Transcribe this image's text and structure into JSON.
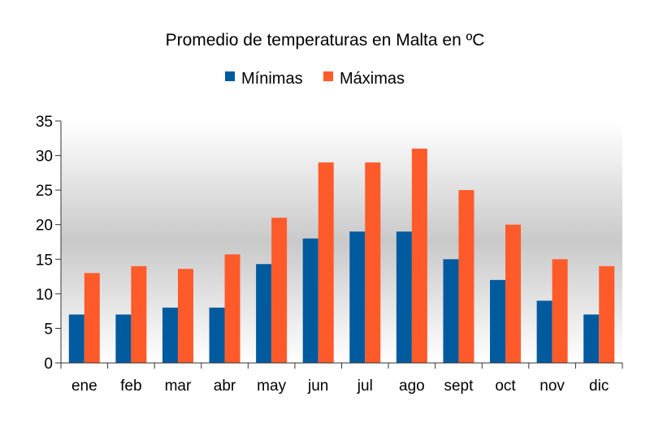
{
  "chart_data": {
    "type": "bar",
    "title": "Promedio de temperaturas en Malta en ºC",
    "xlabel": "",
    "ylabel": "",
    "categories": [
      "ene",
      "feb",
      "mar",
      "abr",
      "may",
      "jun",
      "jul",
      "ago",
      "sept",
      "oct",
      "nov",
      "dic"
    ],
    "series": [
      {
        "name": "Mínimas",
        "color": "#005a9e",
        "values": [
          7,
          7,
          8,
          8,
          14.3,
          18,
          19,
          19,
          15,
          12,
          9,
          7
        ]
      },
      {
        "name": "Máximas",
        "color": "#ff5a2a",
        "values": [
          13,
          14,
          13.6,
          15.7,
          21,
          29,
          29,
          31,
          25,
          20,
          15,
          14
        ]
      }
    ],
    "ylim": [
      0,
      35
    ],
    "yticks": [
      0,
      5,
      10,
      15,
      20,
      25,
      30,
      35
    ],
    "grid": false,
    "legend_position": "top"
  }
}
